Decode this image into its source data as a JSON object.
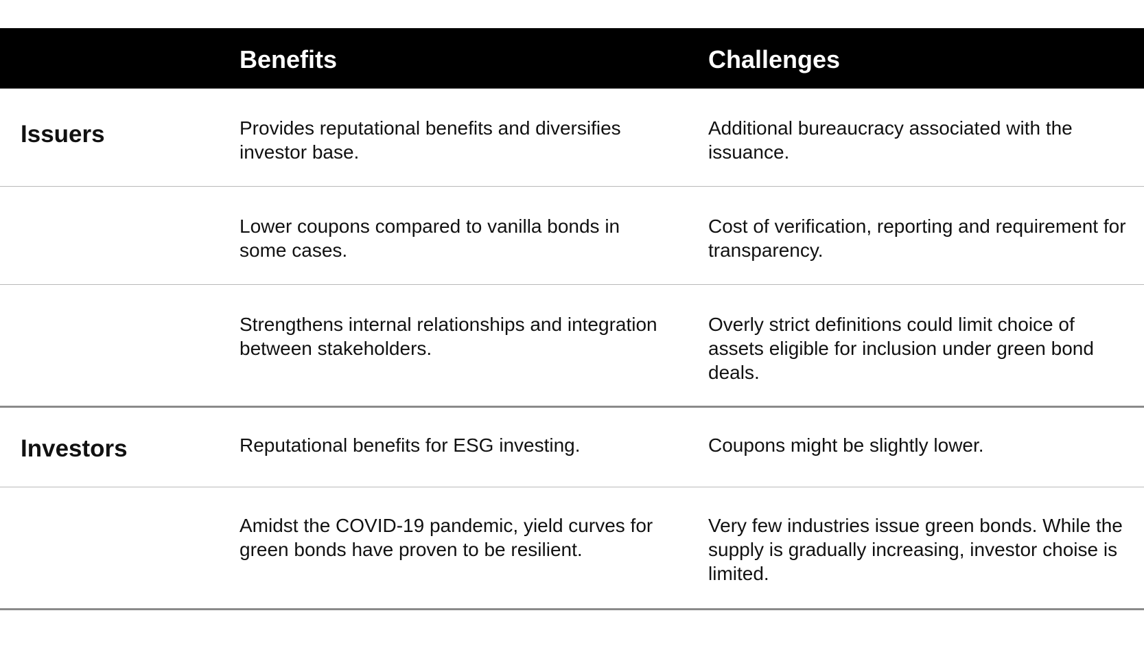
{
  "header": {
    "corner": "",
    "benefits": "Benefits",
    "challenges": "Challenges"
  },
  "groups": [
    {
      "label": "Issuers",
      "rows": [
        {
          "benefit": "Provides reputational benefits and diversifies investor base.",
          "challenge": "Additional bureaucracy associated with the issuance."
        },
        {
          "benefit": "Lower coupons compared to vanilla bonds in some cases.",
          "challenge": "Cost of verification, reporting and requirement for transparency."
        },
        {
          "benefit": "Strengthens internal relationships and integration between stakeholders.",
          "challenge": "Overly strict definitions could limit choice of assets eligible for inclusion under green bond deals."
        }
      ]
    },
    {
      "label": "Investors",
      "rows": [
        {
          "benefit": "Reputational benefits for ESG investing.",
          "challenge": "Coupons might be slightly lower."
        },
        {
          "benefit": "Amidst the COVID-19 pandemic, yield curves for green bonds have proven to be resilient.",
          "challenge": "Very few industries issue green bonds. While the supply is gradually increasing, investor choise is limited."
        }
      ]
    }
  ],
  "colors": {
    "header_background": "#000000",
    "header_text": "#ffffff",
    "body_text": "#111111",
    "row_divider": "#b9b9b9",
    "group_divider": "#8a8a8a"
  }
}
